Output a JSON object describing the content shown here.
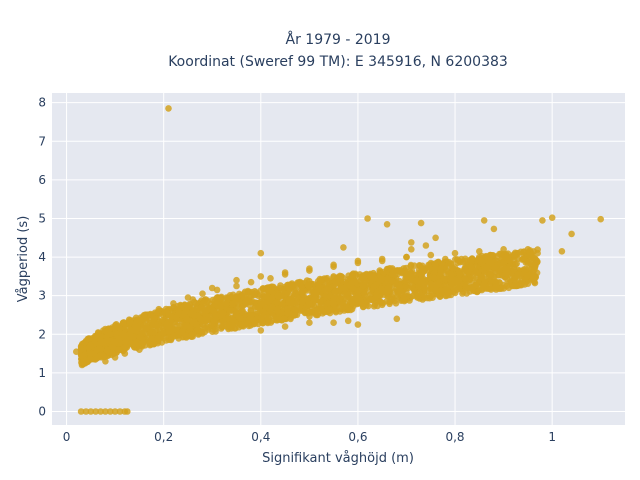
{
  "chart_data": {
    "type": "scatter",
    "title_line1": "År 1979 - 2019",
    "title_line2": "Koordinat (Sweref 99 TM): E 345916, N 6200383",
    "xlabel": "Signifikant våghöjd (m)",
    "ylabel": "Vågperiod (s)",
    "xlim": [
      -0.03,
      1.15
    ],
    "ylim": [
      -0.35,
      8.25
    ],
    "x_ticks": [
      0,
      0.2,
      0.4,
      0.6,
      0.8,
      1
    ],
    "x_tick_labels": [
      "0",
      "0,2",
      "0,4",
      "0,6",
      "0,8",
      "1"
    ],
    "y_ticks": [
      0,
      1,
      2,
      3,
      4,
      5,
      6,
      7,
      8
    ],
    "y_tick_labels": [
      "0",
      "1",
      "2",
      "3",
      "4",
      "5",
      "6",
      "7",
      "8"
    ],
    "grid": true,
    "marker_color": "#d4a21f",
    "plot_bg": "#e5e8f0",
    "series": [
      {
        "note_points": "representative sample of the dense cloud",
        "x": [
          0.21,
          1.1,
          1.0,
          0.98,
          1.04,
          0.88,
          0.86,
          0.73,
          0.66,
          0.62,
          0.4,
          0.71,
          0.74,
          0.71,
          0.76,
          0.57,
          0.03,
          0.04,
          0.05,
          0.06,
          0.07,
          0.08,
          0.09,
          0.1,
          0.11,
          0.12,
          0.125,
          0.02,
          0.03,
          0.05,
          0.07,
          0.09,
          0.11,
          0.13,
          0.16,
          0.19,
          0.22,
          0.25,
          0.28,
          0.31,
          0.35,
          0.38,
          0.42,
          0.45,
          0.5,
          0.55,
          0.6,
          0.65,
          0.7,
          0.75,
          0.8,
          0.85,
          0.9,
          0.95,
          0.05,
          0.08,
          0.1,
          0.12,
          0.15,
          0.18,
          0.2,
          0.23,
          0.27,
          0.3,
          0.34,
          0.38,
          0.42,
          0.46,
          0.5,
          0.55,
          0.6,
          0.65,
          0.7,
          0.75,
          0.8,
          0.1,
          0.14,
          0.18,
          0.22,
          0.26,
          0.3,
          0.35,
          0.4,
          0.45,
          0.5,
          0.55,
          0.6,
          0.65,
          0.7,
          0.78,
          0.85,
          0.92,
          0.97,
          1.02,
          0.4,
          0.45,
          0.5,
          0.55,
          0.58,
          0.6,
          0.68
        ],
        "y": [
          7.85,
          4.98,
          5.02,
          4.95,
          4.6,
          4.73,
          4.95,
          4.88,
          4.85,
          5.0,
          4.1,
          4.38,
          4.3,
          4.2,
          4.5,
          4.25,
          0.0,
          0.0,
          0.0,
          0.0,
          0.0,
          0.0,
          0.0,
          0.0,
          0.0,
          0.0,
          0.0,
          1.55,
          1.6,
          1.7,
          1.85,
          2.0,
          2.15,
          2.3,
          2.5,
          2.65,
          2.8,
          2.95,
          3.05,
          3.15,
          3.25,
          3.35,
          3.45,
          3.55,
          3.65,
          3.75,
          3.85,
          3.9,
          4.0,
          4.05,
          4.1,
          4.15,
          4.2,
          4.2,
          1.35,
          1.3,
          1.4,
          1.5,
          1.6,
          1.75,
          1.9,
          2.0,
          2.1,
          2.25,
          2.4,
          2.5,
          2.6,
          2.7,
          2.8,
          2.9,
          3.0,
          3.1,
          3.2,
          3.3,
          3.4,
          1.8,
          2.1,
          2.4,
          2.7,
          2.9,
          3.2,
          3.4,
          3.5,
          3.6,
          3.7,
          3.8,
          3.9,
          3.95,
          4.0,
          3.95,
          4.0,
          4.05,
          4.1,
          4.15,
          2.1,
          2.2,
          2.3,
          2.3,
          2.35,
          2.25,
          2.4
        ]
      }
    ]
  }
}
